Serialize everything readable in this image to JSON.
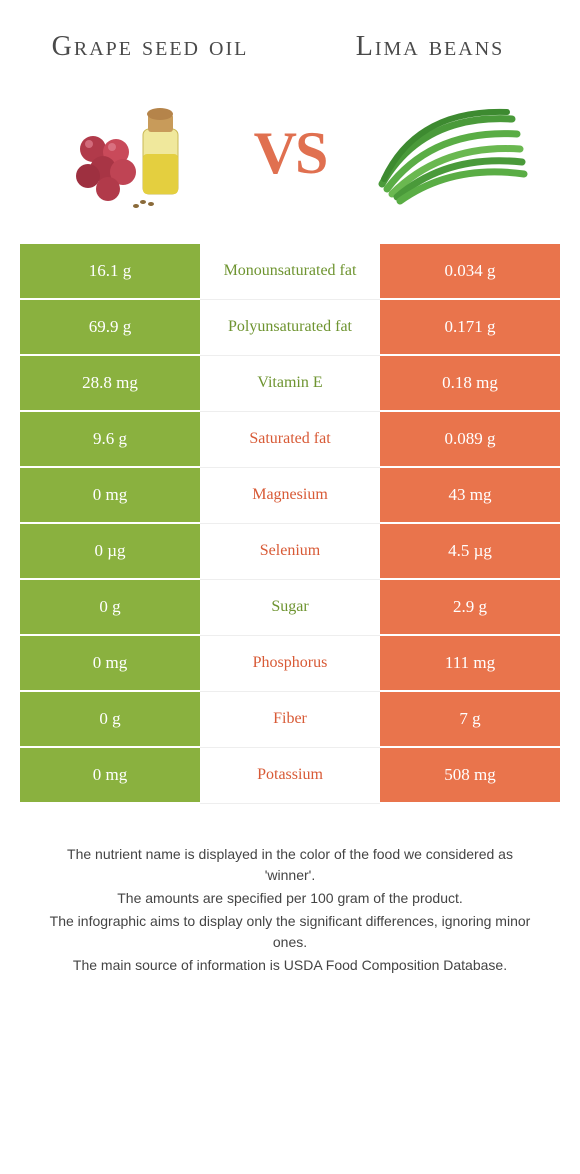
{
  "titles": {
    "left": "Grape seed oil",
    "right": "Lima beans",
    "vs": "VS"
  },
  "colors": {
    "green": "#8ab13f",
    "orange": "#e9744c",
    "green_text": "#6e9430",
    "orange_text": "#d85a36"
  },
  "rows": [
    {
      "left": "16.1 g",
      "label": "Monounsaturated fat",
      "right": "0.034 g",
      "winner": "left"
    },
    {
      "left": "69.9 g",
      "label": "Polyunsaturated fat",
      "right": "0.171 g",
      "winner": "left"
    },
    {
      "left": "28.8 mg",
      "label": "Vitamin E",
      "right": "0.18 mg",
      "winner": "left"
    },
    {
      "left": "9.6 g",
      "label": "Saturated fat",
      "right": "0.089 g",
      "winner": "right"
    },
    {
      "left": "0 mg",
      "label": "Magnesium",
      "right": "43 mg",
      "winner": "right"
    },
    {
      "left": "0 µg",
      "label": "Selenium",
      "right": "4.5 µg",
      "winner": "right"
    },
    {
      "left": "0 g",
      "label": "Sugar",
      "right": "2.9 g",
      "winner": "left"
    },
    {
      "left": "0 mg",
      "label": "Phosphorus",
      "right": "111 mg",
      "winner": "right"
    },
    {
      "left": "0 g",
      "label": "Fiber",
      "right": "7 g",
      "winner": "right"
    },
    {
      "left": "0 mg",
      "label": "Potassium",
      "right": "508 mg",
      "winner": "right"
    }
  ],
  "footer": {
    "line1": "The nutrient name is displayed in the color of the food we considered as 'winner'.",
    "line2": "The amounts are specified per 100 gram of the product.",
    "line3": "The infographic aims to display only the significant differences, ignoring minor ones.",
    "line4": "The main source of information is USDA Food Composition Database."
  }
}
